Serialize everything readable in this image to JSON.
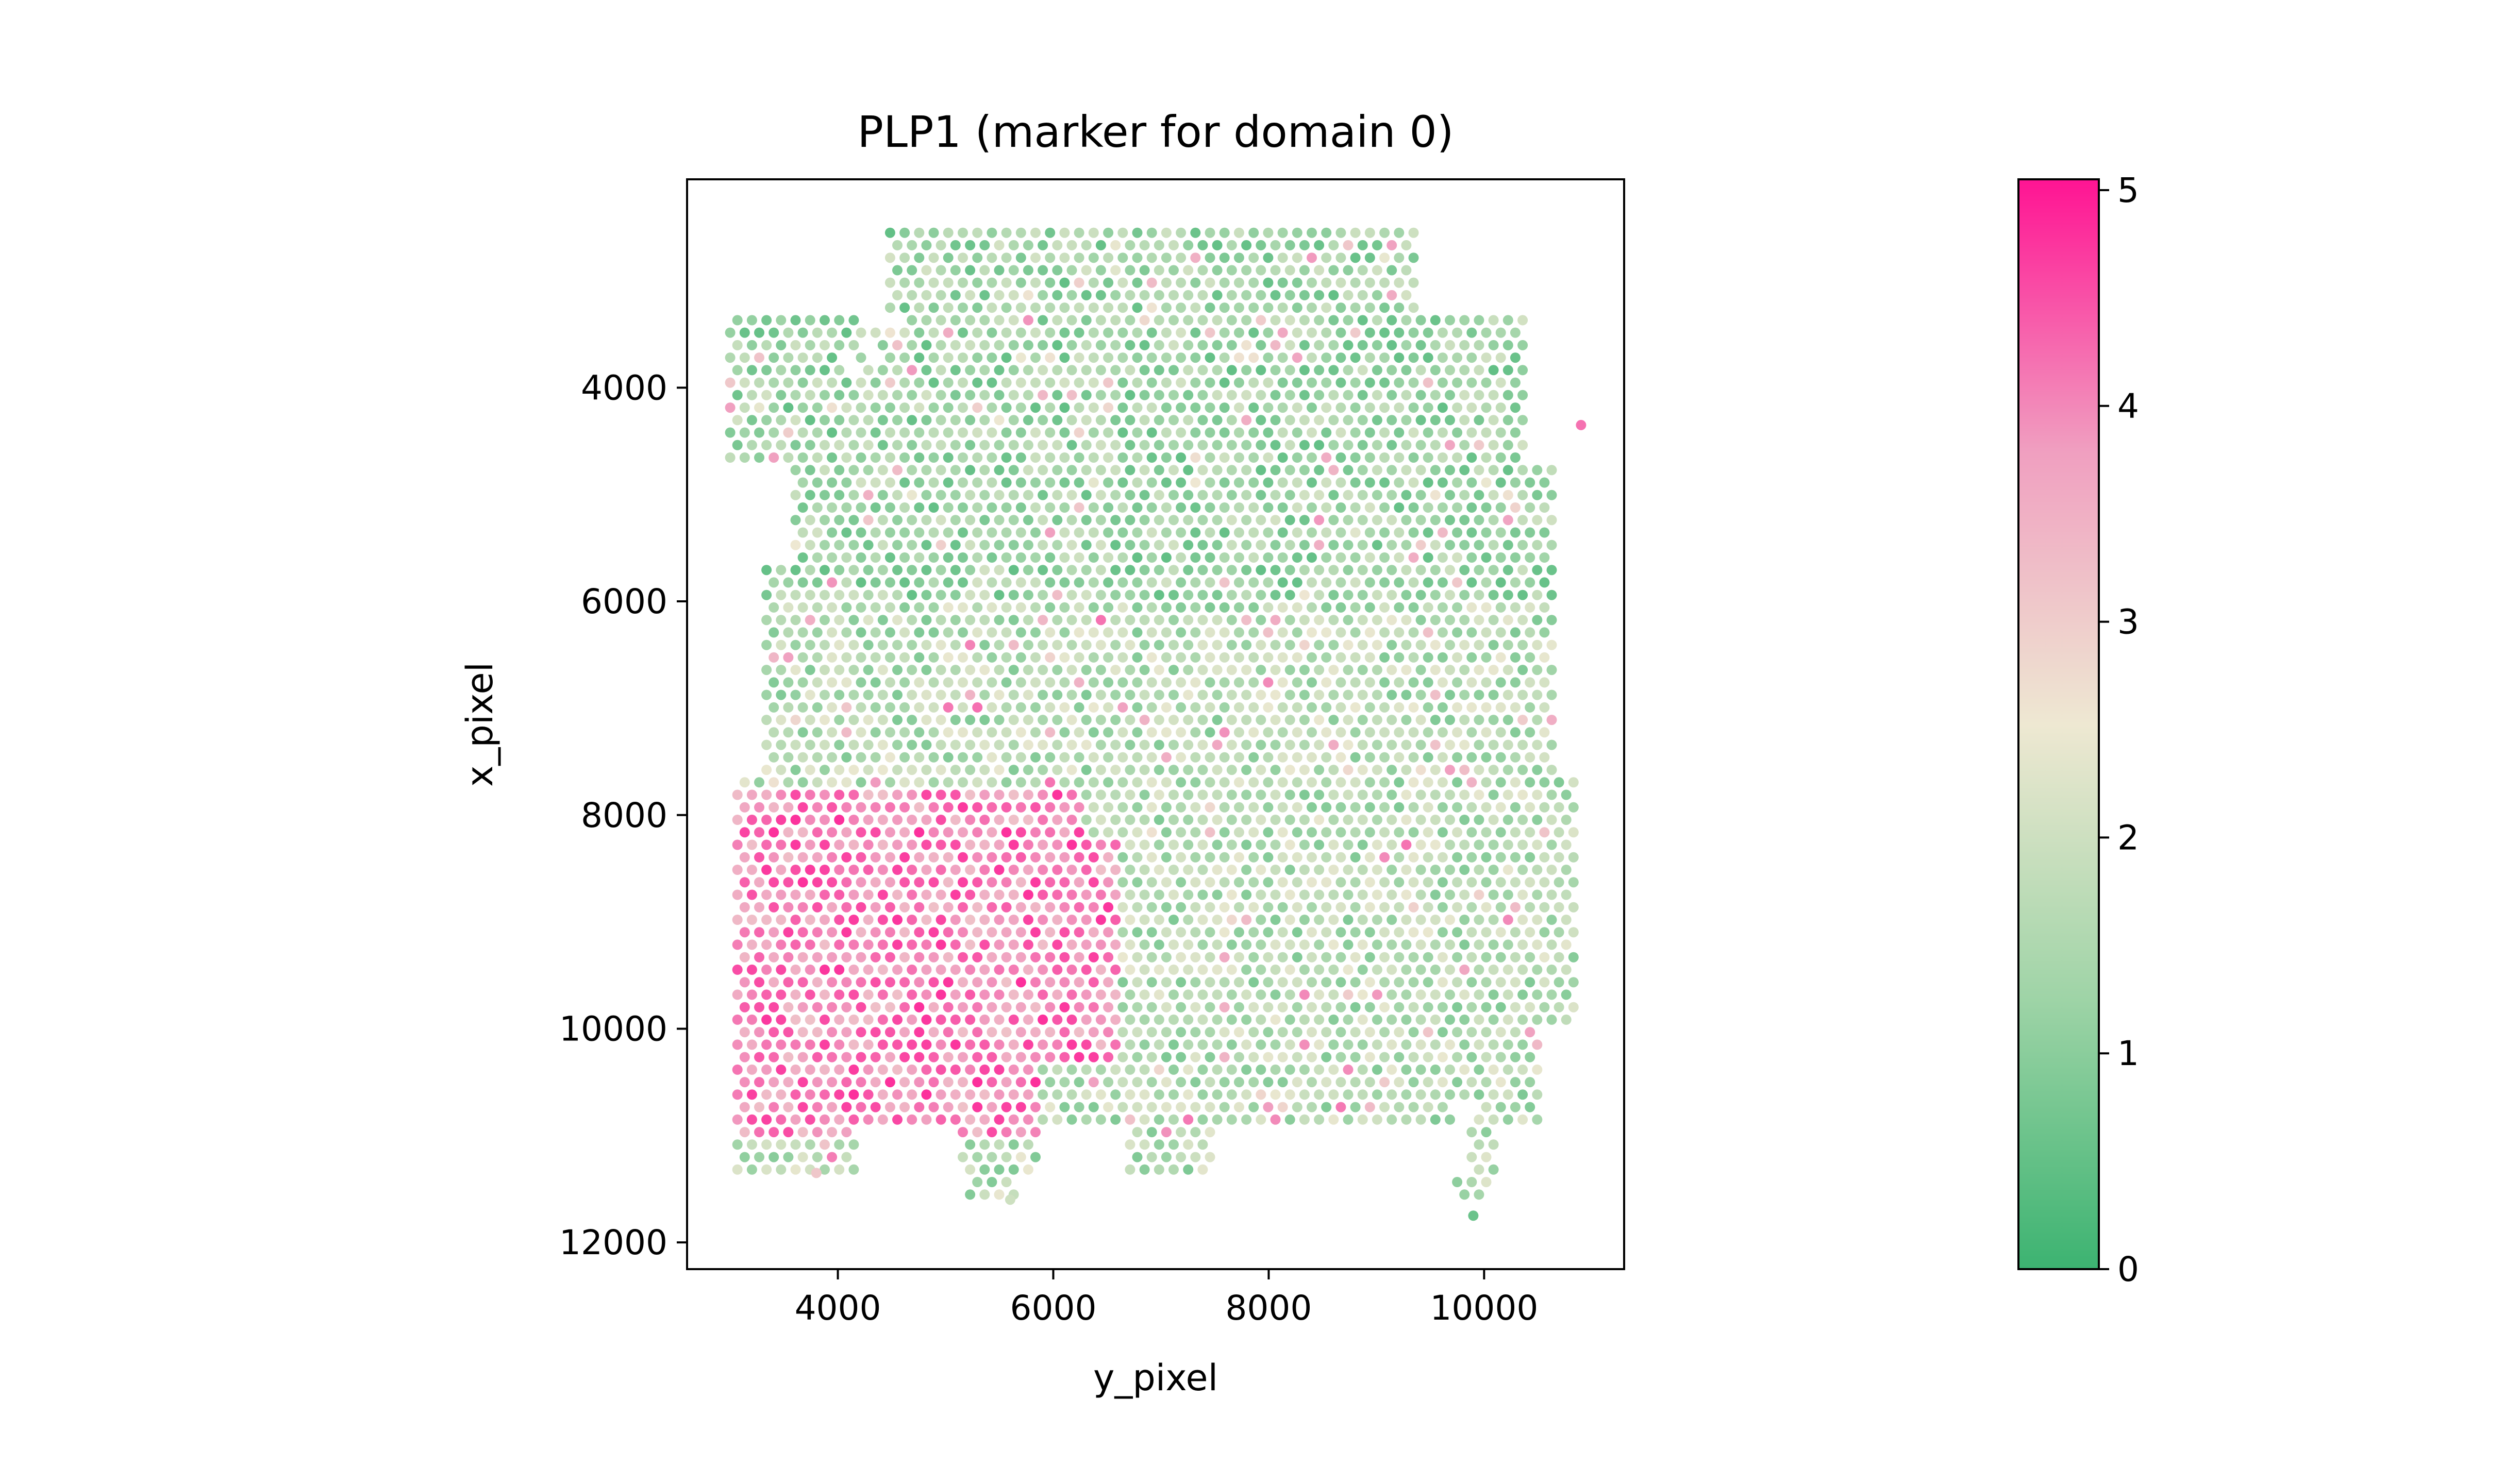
{
  "chart_data": {
    "type": "scatter",
    "title": "PLP1 (marker for domain 0)",
    "xlabel": "y_pixel",
    "ylabel": "x_pixel",
    "xlim": [
      2600,
      11300
    ],
    "ylim": [
      12250,
      2050
    ],
    "y_inverted": true,
    "xticks": [
      4000,
      6000,
      8000,
      10000
    ],
    "yticks": [
      4000,
      6000,
      8000,
      10000,
      12000
    ],
    "grid": false,
    "colorbar": {
      "range": [
        0,
        5.05
      ],
      "ticks": [
        0,
        1,
        2,
        3,
        4,
        5
      ],
      "colors": [
        "#3cb371",
        "#9fd4a7",
        "#eee8d2",
        "#f09fc0",
        "#ff1493"
      ]
    },
    "tissue_region": {
      "x_range": [
        3000,
        10900
      ],
      "y_range": [
        2550,
        11600
      ],
      "spot_spacing": 135,
      "high_expression_region": {
        "x_range": [
          3000,
          6600
        ],
        "y_range": [
          7800,
          11000
        ],
        "value": 4.0
      },
      "low_expression_region": {
        "x_range": [
          3000,
          10900
        ],
        "y_range": [
          2550,
          7800
        ],
        "value": 1.3
      }
    },
    "points": [
      {
        "x": 10900,
        "y": 4350,
        "value": 4.2
      },
      {
        "x": 3800,
        "y": 11350,
        "value": 3.1
      },
      {
        "x": 5600,
        "y": 11600,
        "value": 2.0
      },
      {
        "x": 9900,
        "y": 11750,
        "value": 0.6
      }
    ]
  }
}
